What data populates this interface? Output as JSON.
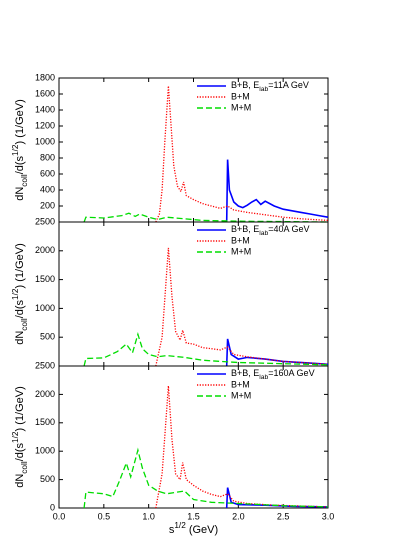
{
  "chart_data": [
    {
      "type": "line",
      "xlim": [
        0,
        3
      ],
      "xticks": [
        0,
        0.5,
        1,
        1.5,
        2,
        2.5,
        3
      ],
      "ylim": [
        0,
        1800
      ],
      "yticks": [
        200,
        400,
        600,
        800,
        1000,
        1200,
        1400,
        1600,
        1800
      ],
      "y_label": {
        "a": "dN",
        "sub": "coll",
        "b": "/d(s",
        "sup": "1/2",
        "c": ") (1/GeV)"
      },
      "series": [
        {
          "name": {
            "a": "B+B, E",
            "sub": "lab",
            "b": "=11A GeV"
          },
          "color": "#0000ff",
          "style": "solid",
          "x": [
            1.87,
            1.88,
            1.9,
            1.95,
            2.0,
            2.05,
            2.1,
            2.15,
            2.2,
            2.25,
            2.3,
            2.4,
            2.5,
            2.6,
            2.7,
            2.8,
            2.9,
            3.0
          ],
          "values": [
            0,
            780,
            400,
            250,
            200,
            180,
            210,
            250,
            280,
            220,
            260,
            200,
            160,
            140,
            120,
            100,
            80,
            60
          ]
        },
        {
          "name": "B+M",
          "color": "#ff0000",
          "style": "dotted",
          "x": [
            1.08,
            1.12,
            1.15,
            1.18,
            1.22,
            1.25,
            1.28,
            1.32,
            1.36,
            1.39,
            1.42,
            1.5,
            1.6,
            1.7,
            1.8,
            1.88,
            1.95,
            2.1,
            2.3,
            2.5,
            2.7,
            3.0
          ],
          "values": [
            0,
            100,
            400,
            1000,
            1700,
            1200,
            700,
            450,
            380,
            500,
            330,
            280,
            230,
            200,
            170,
            200,
            150,
            120,
            90,
            60,
            40,
            20
          ]
        },
        {
          "name": "M+M",
          "color": "#00dd00",
          "style": "dashed",
          "x": [
            0.28,
            0.3,
            0.5,
            0.7,
            0.78,
            0.85,
            0.9,
            1.0,
            1.1,
            1.2,
            1.4,
            1.6,
            2.0,
            3.0
          ],
          "values": [
            0,
            60,
            50,
            80,
            110,
            70,
            100,
            60,
            30,
            60,
            40,
            20,
            10,
            0
          ]
        }
      ]
    },
    {
      "type": "line",
      "xlim": [
        0,
        3
      ],
      "xticks": [
        0,
        0.5,
        1,
        1.5,
        2,
        2.5,
        3
      ],
      "ylim": [
        0,
        2500
      ],
      "yticks": [
        500,
        1000,
        1500,
        2000,
        2500
      ],
      "y_label": {
        "a": "dN",
        "sub": "coll",
        "b": "/d(s",
        "sup": "1/2",
        "c": ") (1/GeV)"
      },
      "series": [
        {
          "name": {
            "a": "B+B, E",
            "sub": "lab",
            "b": "=40A GeV"
          },
          "color": "#0000ff",
          "style": "solid",
          "x": [
            1.87,
            1.88,
            1.92,
            2.0,
            2.1,
            2.3,
            2.5,
            2.8,
            3.0
          ],
          "values": [
            0,
            470,
            200,
            120,
            150,
            120,
            80,
            50,
            30
          ]
        },
        {
          "name": "B+M",
          "color": "#ff0000",
          "style": "dotted",
          "x": [
            1.08,
            1.15,
            1.22,
            1.26,
            1.3,
            1.35,
            1.38,
            1.42,
            1.5,
            1.6,
            1.7,
            1.8,
            1.88,
            1.95,
            2.1,
            2.3,
            2.5,
            2.8,
            3.0
          ],
          "values": [
            0,
            500,
            2050,
            1200,
            600,
            450,
            620,
            400,
            380,
            320,
            300,
            280,
            330,
            200,
            160,
            120,
            80,
            50,
            30
          ]
        },
        {
          "name": "M+M",
          "color": "#00dd00",
          "style": "dashed",
          "x": [
            0.28,
            0.3,
            0.5,
            0.65,
            0.75,
            0.82,
            0.88,
            0.93,
            1.0,
            1.1,
            1.2,
            1.4,
            1.6,
            1.8,
            2.0,
            2.5,
            3.0
          ],
          "values": [
            0,
            130,
            140,
            250,
            380,
            230,
            550,
            300,
            200,
            160,
            180,
            150,
            100,
            80,
            60,
            40,
            20
          ]
        }
      ]
    },
    {
      "type": "line",
      "xlim": [
        0,
        3
      ],
      "xticks": [
        {
          "value": 0,
          "label": "0.0"
        },
        {
          "value": 0.5,
          "label": "0.5"
        },
        {
          "value": 1,
          "label": "1.0"
        },
        {
          "value": 1.5,
          "label": "1.5"
        },
        {
          "value": 2,
          "label": "2.0"
        },
        {
          "value": 2.5,
          "label": "2.5"
        },
        {
          "value": 3,
          "label": "3.0"
        }
      ],
      "ylim": [
        0,
        2500
      ],
      "yticks": [
        0,
        500,
        1000,
        1500,
        2000,
        2500
      ],
      "y_label": {
        "a": "dN",
        "sub": "coll",
        "b": "/d(s",
        "sup": "1/2",
        "c": ") (1/GeV)"
      },
      "x_label": {
        "a": "s",
        "sup": "1/2",
        "b": " (GeV)"
      },
      "series": [
        {
          "name": {
            "a": "B+B, E",
            "sub": "lab",
            "b": "=160A GeV"
          },
          "color": "#0000ff",
          "style": "solid",
          "x": [
            1.87,
            1.88,
            1.92,
            2.0,
            2.3,
            2.6,
            3.0
          ],
          "values": [
            0,
            360,
            100,
            60,
            50,
            30,
            20
          ]
        },
        {
          "name": "B+M",
          "color": "#ff0000",
          "style": "dotted",
          "x": [
            1.08,
            1.15,
            1.22,
            1.26,
            1.3,
            1.35,
            1.38,
            1.42,
            1.5,
            1.6,
            1.7,
            1.8,
            1.88,
            1.95,
            2.1,
            2.4,
            3.0
          ],
          "values": [
            0,
            600,
            2150,
            1200,
            600,
            500,
            800,
            500,
            400,
            300,
            240,
            200,
            250,
            120,
            80,
            50,
            20
          ]
        },
        {
          "name": "M+M",
          "color": "#00dd00",
          "style": "dashed",
          "x": [
            0.28,
            0.3,
            0.5,
            0.6,
            0.68,
            0.75,
            0.8,
            0.88,
            0.93,
            1.0,
            1.1,
            1.2,
            1.4,
            1.5,
            1.7,
            2.0,
            2.5,
            3.0
          ],
          "values": [
            0,
            280,
            250,
            200,
            500,
            790,
            550,
            1020,
            700,
            400,
            300,
            250,
            300,
            150,
            100,
            80,
            40,
            20
          ]
        }
      ]
    }
  ]
}
